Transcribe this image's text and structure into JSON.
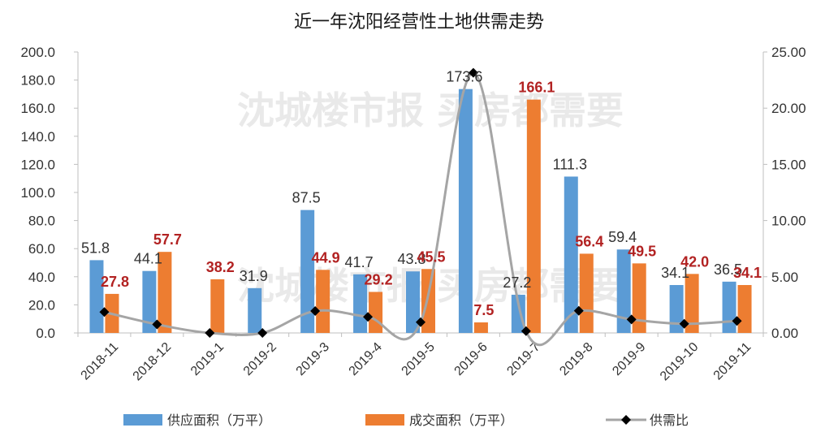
{
  "chart_data": {
    "type": "bar",
    "title": "近一年沈阳经营性土地供需走势",
    "categories": [
      "2018-11",
      "2018-12",
      "2019-1",
      "2019-2",
      "2019-3",
      "2019-4",
      "2019-5",
      "2019-6",
      "2019-7",
      "2019-8",
      "2019-9",
      "2019-10",
      "2019-11"
    ],
    "series": [
      {
        "name": "供应面积（万平）",
        "type": "bar",
        "axis": "left",
        "color": "#5b9bd5",
        "values": [
          51.8,
          44.1,
          0,
          31.9,
          87.5,
          41.7,
          43.8,
          173.6,
          27.2,
          111.3,
          59.4,
          34.1,
          36.5
        ],
        "labels": [
          "51.8",
          "44.1",
          "",
          "31.9",
          "87.5",
          "41.7",
          "43.8",
          "173.6",
          "27.2",
          "111.3",
          "59.4",
          "34.1",
          "36.5"
        ]
      },
      {
        "name": "成交面积（万平）",
        "type": "bar",
        "axis": "left",
        "color": "#ed7d31",
        "values": [
          27.8,
          57.7,
          38.2,
          0,
          44.9,
          29.2,
          45.5,
          7.5,
          166.1,
          56.4,
          49.5,
          42.0,
          34.1
        ],
        "labels": [
          "27.8",
          "57.7",
          "38.2",
          "",
          "44.9",
          "29.2",
          "45.5",
          "7.5",
          "166.1",
          "56.4",
          "49.5",
          "42.0",
          "34.1"
        ]
      },
      {
        "name": "供需比",
        "type": "line",
        "axis": "right",
        "color": "#a5a5a5",
        "marker_color": "#000000",
        "values": [
          1.86,
          0.76,
          0,
          0,
          1.95,
          1.43,
          0.96,
          23.15,
          0.16,
          1.97,
          1.2,
          0.81,
          1.07
        ]
      }
    ],
    "ylim_left": [
      0,
      200
    ],
    "yticks_left": [
      "0.0",
      "20.0",
      "40.0",
      "60.0",
      "80.0",
      "100.0",
      "120.0",
      "140.0",
      "160.0",
      "180.0",
      "200.0"
    ],
    "ylim_right": [
      0,
      25
    ],
    "yticks_right": [
      "0.00",
      "5.00",
      "10.00",
      "15.00",
      "20.00",
      "25.00"
    ],
    "legend_position": "bottom",
    "watermark": "沈城楼市报  买房都需要"
  }
}
